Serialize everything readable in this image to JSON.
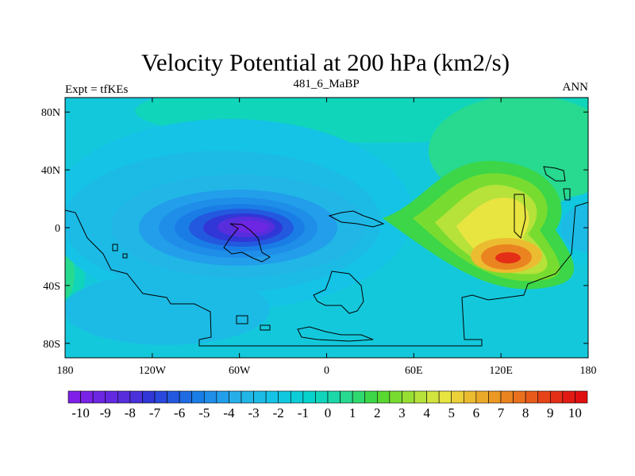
{
  "title": "Velocity Potential at 200 hPa (km2/s)",
  "left_string": "Expt = tfKEs",
  "center_string": "481_6_MaBP",
  "right_string": "ANN",
  "map": {
    "projection": "cylindrical-equidistant",
    "lon_range": [
      -180,
      180
    ],
    "lat_range": [
      -90,
      90
    ],
    "x_ticks": [
      {
        "value": -180,
        "label": "180"
      },
      {
        "value": -120,
        "label": "120W"
      },
      {
        "value": -60,
        "label": "60W"
      },
      {
        "value": 0,
        "label": "0"
      },
      {
        "value": 60,
        "label": "60E"
      },
      {
        "value": 120,
        "label": "120E"
      },
      {
        "value": 180,
        "label": "180"
      }
    ],
    "y_ticks": [
      {
        "value": 80,
        "label": "80N"
      },
      {
        "value": 40,
        "label": "40N"
      },
      {
        "value": 0,
        "label": "0"
      },
      {
        "value": -40,
        "label": "40S"
      },
      {
        "value": -80,
        "label": "80S"
      }
    ],
    "field_features": [
      {
        "kind": "min",
        "lon": -65,
        "lat": 0,
        "value": -10.5
      },
      {
        "kind": "min",
        "lon": -95,
        "lat": 30,
        "value": -2.5
      },
      {
        "kind": "min",
        "lon": -115,
        "lat": -50,
        "value": -2
      },
      {
        "kind": "min",
        "lon": 175,
        "lat": 5,
        "value": -1.5
      },
      {
        "kind": "max",
        "lon": 125,
        "lat": -22,
        "value": 9.5
      },
      {
        "kind": "max",
        "lon": 112,
        "lat": 18,
        "value": 3
      }
    ]
  },
  "colorbar": {
    "labels": [
      "-10",
      "-9",
      "-8",
      "-7",
      "-6",
      "-5",
      "-4",
      "-3",
      "-2",
      "-1",
      "0",
      "1",
      "2",
      "3",
      "4",
      "5",
      "6",
      "7",
      "8",
      "9",
      "10"
    ],
    "levels": [
      -10,
      -9.5,
      -9,
      -8.5,
      -8,
      -7.5,
      -7,
      -6.5,
      -6,
      -5.5,
      -5,
      -4.5,
      -4,
      -3.5,
      -3,
      -2.5,
      -2,
      -1.5,
      -1,
      -0.5,
      0,
      0.5,
      1,
      1.5,
      2,
      2.5,
      3,
      3.5,
      4,
      4.5,
      5,
      5.5,
      6,
      6.5,
      7,
      7.5,
      8,
      8.5,
      9,
      9.5,
      10
    ],
    "colors": [
      "#7f1fe8",
      "#7a22e6",
      "#6d26e2",
      "#6229e0",
      "#572ddc",
      "#4a31d9",
      "#3136d6",
      "#2a48db",
      "#2259df",
      "#1e6be2",
      "#1a7de6",
      "#1e8ee9",
      "#229eeb",
      "#26aee9",
      "#21b6e6",
      "#1cbbe6",
      "#14c3e6",
      "#10c8e0",
      "#0ccdd8",
      "#08d2cc",
      "#10d5bb",
      "#1cd7a8",
      "#28d990",
      "#30d870",
      "#3cd648",
      "#58d830",
      "#78dc30",
      "#98df34",
      "#b6e23a",
      "#d2e43e",
      "#e8e440",
      "#ecd038",
      "#ecbc30",
      "#ecaa2a",
      "#eb9824",
      "#ea8420",
      "#e9701e",
      "#e85a1a",
      "#e64418",
      "#e42e16",
      "#e21a14",
      "#e01010"
    ]
  }
}
